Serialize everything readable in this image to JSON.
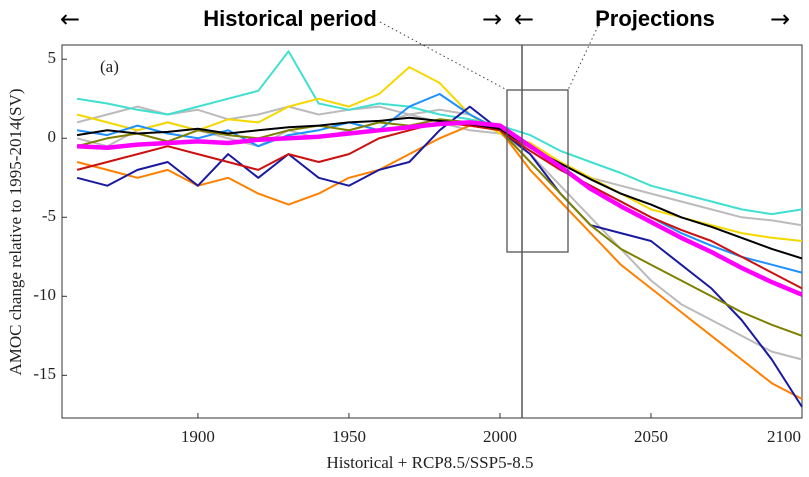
{
  "header": {
    "left_arrow": "←",
    "right_arrow": "→",
    "historical_label": "Historical period",
    "projections_label": "Projections"
  },
  "chart_data": {
    "type": "line",
    "panel_label": "(a)",
    "x_label": "Historical + RCP8.5/SSP5-8.5",
    "y_label": "AMOC change relative to 1995-2014(SV)",
    "x": [
      1860,
      1870,
      1880,
      1890,
      1900,
      1910,
      1920,
      1930,
      1940,
      1950,
      1960,
      1970,
      1980,
      1990,
      2000,
      2010,
      2020,
      2030,
      2040,
      2050,
      2060,
      2070,
      2080,
      2090,
      2100
    ],
    "xlim": [
      1855,
      2100
    ],
    "xticks": [
      1900,
      1950,
      2000,
      2050,
      2100
    ],
    "ylim": [
      -17.7,
      5.9
    ],
    "yticks": [
      -15,
      -10,
      -5,
      0,
      5
    ],
    "series": [
      {
        "color": "#bbbbbb",
        "values": [
          1.0,
          1.5,
          2.0,
          1.5,
          1.8,
          1.2,
          1.5,
          2.0,
          1.5,
          1.8,
          2.0,
          1.5,
          1.8,
          1.5,
          0.5,
          -0.5,
          -1.5,
          -2.5,
          -3.0,
          -3.5,
          -4.0,
          -4.5,
          -5.0,
          -5.2,
          -5.5
        ]
      },
      {
        "color": "#bbbbbb",
        "values": [
          0,
          -0.5,
          0.5,
          1.0,
          0.5,
          0,
          -0.5,
          0.5,
          0,
          0.5,
          1.0,
          1.5,
          1.0,
          0.5,
          0.3,
          -1.0,
          -3.0,
          -5.0,
          -7.0,
          -9.0,
          -10.5,
          -11.5,
          -12.5,
          -13.5,
          -14.0
        ]
      },
      {
        "color": "#40e0d0",
        "values": [
          2.5,
          2.2,
          1.8,
          1.5,
          2.0,
          2.5,
          3.0,
          5.5,
          2.2,
          1.8,
          2.2,
          2.0,
          1.5,
          1.2,
          0.8,
          0.2,
          -0.8,
          -1.5,
          -2.2,
          -3.0,
          -3.5,
          -4.0,
          -4.5,
          -4.8,
          -4.5
        ]
      },
      {
        "color": "#f5d800",
        "values": [
          1.5,
          1.0,
          0.5,
          1.0,
          0.5,
          1.2,
          1.0,
          2.0,
          2.5,
          2.0,
          2.8,
          4.5,
          3.5,
          1.5,
          0.3,
          -0.3,
          -1.5,
          -2.5,
          -3.5,
          -4.5,
          -5.0,
          -5.5,
          -6.0,
          -6.3,
          -6.5
        ]
      },
      {
        "color": "#ff8000",
        "values": [
          -1.5,
          -2.0,
          -2.5,
          -2.0,
          -3.0,
          -2.5,
          -3.5,
          -4.2,
          -3.5,
          -2.5,
          -2.0,
          -1.0,
          0,
          0.8,
          0.5,
          -2.0,
          -4.0,
          -6.0,
          -8.0,
          -9.5,
          -11.0,
          -12.5,
          -14.0,
          -15.5,
          -16.5
        ]
      },
      {
        "color": "#1e90ff",
        "values": [
          0.5,
          0.2,
          0.8,
          0.3,
          0,
          0.5,
          -0.5,
          0.2,
          0.5,
          1.0,
          0.5,
          2.0,
          2.8,
          1.5,
          0.5,
          -0.5,
          -2.0,
          -3.0,
          -4.0,
          -5.0,
          -6.0,
          -6.8,
          -7.5,
          -8.0,
          -8.5
        ]
      },
      {
        "color": "#1a1aa0",
        "values": [
          -2.5,
          -3.0,
          -2.0,
          -1.5,
          -3.0,
          -1.0,
          -2.5,
          -1.0,
          -2.5,
          -3.0,
          -2.0,
          -1.5,
          0.5,
          2.0,
          0.5,
          -1.0,
          -3.5,
          -5.5,
          -6.0,
          -6.5,
          -8.0,
          -9.5,
          -11.5,
          -14.0,
          -17.0
        ]
      },
      {
        "color": "#808000",
        "values": [
          -0.5,
          0,
          0.3,
          -0.2,
          0.5,
          0.2,
          0,
          0.5,
          0.8,
          0.5,
          1.0,
          0.8,
          1.2,
          1.0,
          0.5,
          -1.5,
          -3.5,
          -5.5,
          -7.0,
          -8.0,
          -9.0,
          -10.0,
          -11.0,
          -11.8,
          -12.5
        ]
      },
      {
        "color": "#cc1010",
        "values": [
          -2.0,
          -1.5,
          -1.0,
          -0.5,
          -1.0,
          -1.5,
          -2.0,
          -1.0,
          -1.5,
          -1.0,
          0,
          0.5,
          1.0,
          0.8,
          0.5,
          -0.8,
          -2.0,
          -3.0,
          -4.0,
          -5.0,
          -5.8,
          -6.5,
          -7.5,
          -8.5,
          -9.5
        ]
      },
      {
        "color": "#000000",
        "values": [
          0.2,
          0.5,
          0.3,
          0.4,
          0.6,
          0.3,
          0.5,
          0.7,
          0.8,
          1.0,
          1.1,
          1.3,
          1.1,
          0.9,
          0.6,
          -0.6,
          -1.6,
          -2.6,
          -3.5,
          -4.2,
          -5.0,
          -5.6,
          -6.3,
          -7.0,
          -7.6
        ]
      },
      {
        "color": "#ff00ff",
        "values": [
          -0.5,
          -0.6,
          -0.4,
          -0.3,
          -0.2,
          -0.3,
          -0.1,
          0,
          0.1,
          0.3,
          0.5,
          0.7,
          0.9,
          1.0,
          0.8,
          -0.5,
          -1.8,
          -3.2,
          -4.3,
          -5.3,
          -6.3,
          -7.2,
          -8.2,
          -9.1,
          -9.9
        ]
      }
    ]
  }
}
